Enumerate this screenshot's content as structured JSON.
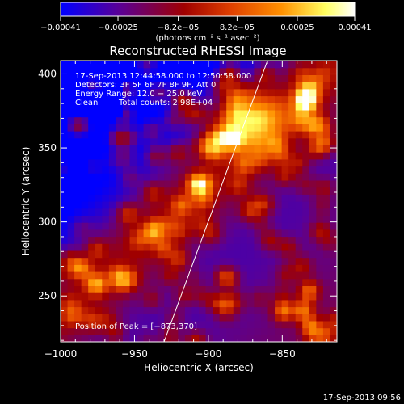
{
  "chart_data": {
    "type": "heatmap",
    "title": "Reconstructed RHESSI Image",
    "xlabel": "Heliocentric X (arcsec)",
    "ylabel": "Heliocentric Y (arcsec)",
    "xlim": [
      -1000,
      -813
    ],
    "ylim": [
      219,
      409
    ],
    "xticks": [
      -1000,
      -950,
      -900,
      -850
    ],
    "xtick_labels": [
      "−1000",
      "−950",
      "−900",
      "−850"
    ],
    "yticks": [
      250,
      300,
      350,
      400
    ],
    "ytick_labels": [
      "250",
      "300",
      "350",
      "400"
    ],
    "colorbar": {
      "vmin": -0.00041,
      "vmax": 0.00041,
      "ticks": [
        -0.00041,
        -0.00025,
        -8.2e-05,
        8.2e-05,
        0.00025,
        0.00041
      ],
      "tick_labels": [
        "−0.00041",
        "−0.00025",
        "−8.2e−05",
        "8.2e−05",
        "0.00025",
        "0.00041"
      ],
      "unit_label": "(photons cm⁻² s⁻¹ asec⁻²)",
      "colormap": [
        "#0000ff",
        "#5a0096",
        "#a00000",
        "#e04000",
        "#ff9000",
        "#ffff60",
        "#ffffff"
      ]
    },
    "annotations": {
      "time_range": "17-Sep-2013 12:44:58.000 to 12:50:58.000",
      "detectors": "Detectors: 3F 5F 6F 7F 8F 9F, Att 0",
      "energy": "Energy Range: 12.0 − 25.0 keV",
      "clean": "Clean",
      "counts": "Total counts: 2.98E+04",
      "peak": "Position of Peak = [−873,370]"
    },
    "limb_line": {
      "x": [
        -930,
        -860
      ],
      "y": [
        219,
        409
      ]
    },
    "peak": {
      "x": -873,
      "y": 370
    }
  },
  "footer_timestamp": "17-Sep-2013 09:56"
}
